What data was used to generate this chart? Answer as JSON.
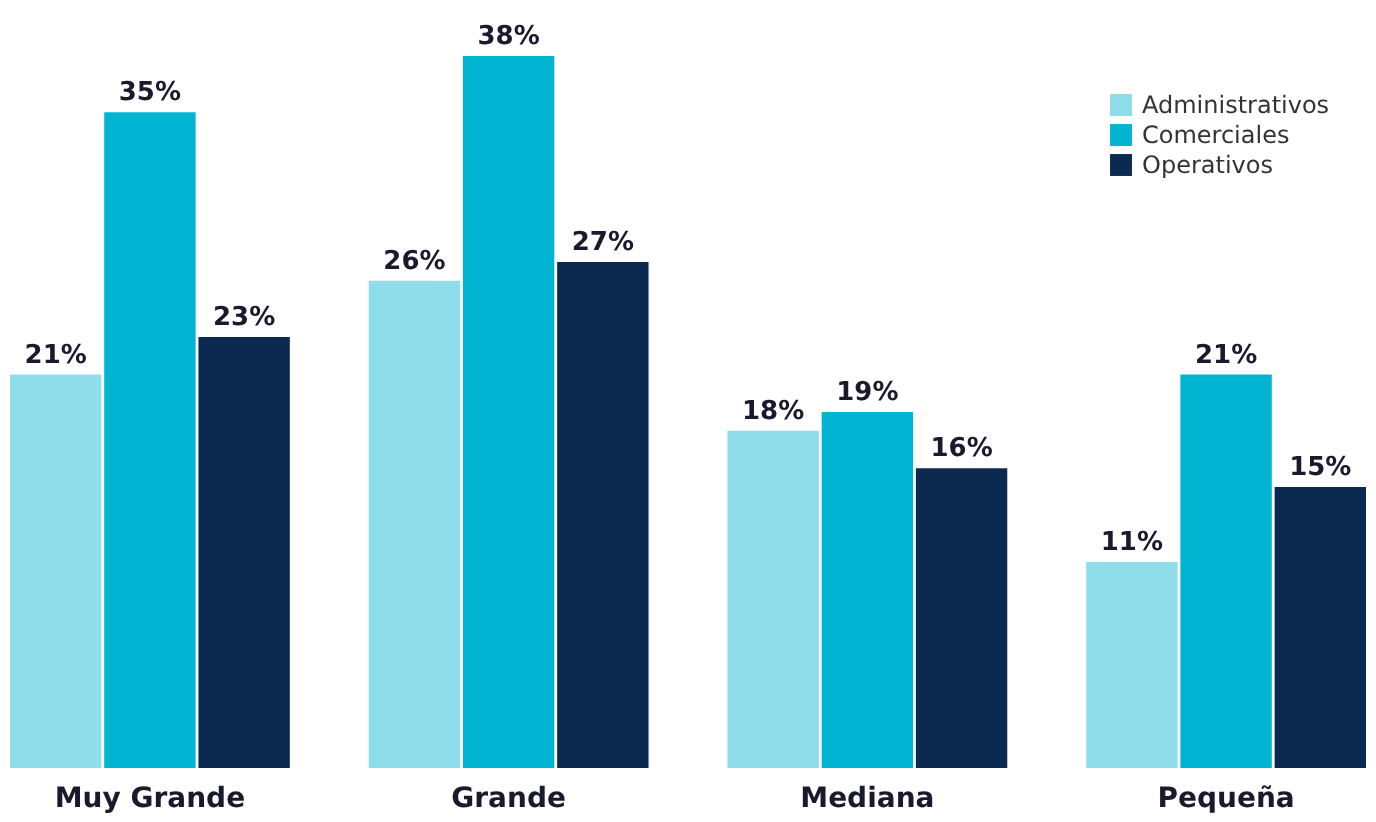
{
  "chart_data": {
    "type": "bar",
    "categories": [
      "Muy Grande",
      "Grande",
      "Mediana",
      "Pequeña"
    ],
    "series": [
      {
        "name": "Administrativos",
        "color": "#8fdcea",
        "values": [
          21,
          26,
          18,
          11
        ],
        "value_labels": [
          "21%",
          "26%",
          "18%",
          "11%"
        ]
      },
      {
        "name": "Comerciales",
        "color": "#00b4d2",
        "values": [
          35,
          38,
          19,
          21
        ],
        "value_labels": [
          "35%",
          "38%",
          "19%",
          "21%"
        ]
      },
      {
        "name": "Operativos",
        "color": "#0c2a50",
        "values": [
          23,
          27,
          16,
          15
        ],
        "value_labels": [
          "23%",
          "27%",
          "16%",
          "15%"
        ]
      }
    ],
    "legend": "top right",
    "grid": false
  }
}
